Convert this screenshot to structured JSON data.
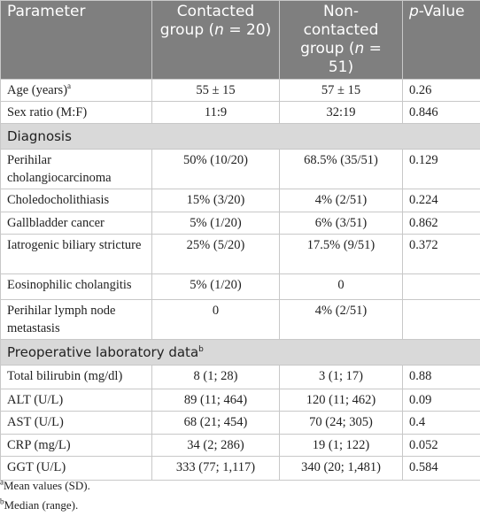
{
  "table": {
    "header": {
      "parameter": "Parameter",
      "contacted": [
        "Contacted group (",
        "n",
        " = 20)"
      ],
      "noncontacted": [
        "Non-contacted group (",
        "n",
        " = 51)"
      ],
      "pvalue": [
        "p",
        "-Value"
      ]
    },
    "body": [
      {
        "label": "Age (years)",
        "note": "a",
        "values": [
          "55 ± 15",
          "57 ± 15",
          "0.26"
        ]
      },
      {
        "label": "Sex ratio (M:F)",
        "values": [
          "11:9",
          "32:19",
          "0.846"
        ]
      },
      {
        "section": "Diagnosis"
      },
      {
        "label": "Perihilar cholangiocarcinoma",
        "values": [
          "50% (10/20)",
          "68.5% (35/51)",
          "0.129"
        ]
      },
      {
        "label": "Choledocholithiasis",
        "values": [
          "15% (3/20)",
          "4% (2/51)",
          "0.224"
        ]
      },
      {
        "label": "Gallbladder cancer",
        "values": [
          "5% (1/20)",
          "6% (3/51)",
          "0.862"
        ]
      },
      {
        "label": "Iatrogenic biliary stricture",
        "values": [
          "25% (5/20)",
          "17.5% (9/51)",
          "0.372"
        ]
      },
      {
        "label": "Eosinophilic cholangitis",
        "values": [
          "5% (1/20)",
          "0"
        ]
      },
      {
        "label": "Perihilar lymph node metastasis",
        "values": [
          "0",
          "4% (2/51)"
        ]
      },
      {
        "section": "Preoperative laboratory data",
        "note": "b"
      },
      {
        "label": "Total bilirubin (mg/dl)",
        "values": [
          "8 (1; 28)",
          "3 (1; 17)",
          "0.88"
        ]
      },
      {
        "label": "ALT (U/L)",
        "values": [
          "89 (11; 464)",
          "120 (11; 462)",
          "0.09"
        ]
      },
      {
        "label": "AST (U/L)",
        "values": [
          "68 (21; 454)",
          "70 (24; 305)",
          "0.4"
        ]
      },
      {
        "label": "CRP (mg/L)",
        "values": [
          "34 (2; 286)",
          "19 (1; 122)",
          "0.052"
        ]
      },
      {
        "label": "GGT (U/L)",
        "values": [
          "333 (77; 1,117)",
          "340 (20; 1,481)",
          "0.584"
        ]
      }
    ],
    "footnotes": [
      {
        "mark": "a",
        "text": "Mean values (SD)."
      },
      {
        "mark": "b",
        "text": "Median (range)."
      }
    ]
  }
}
